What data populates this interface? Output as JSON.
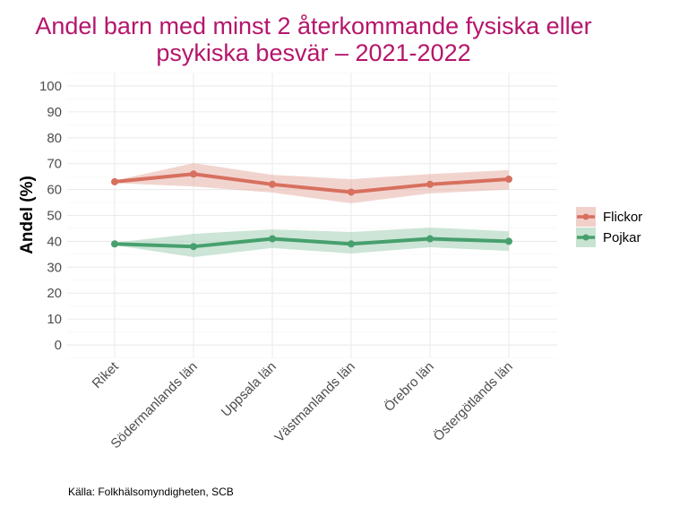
{
  "chart_data": {
    "type": "line",
    "title_lines": [
      "Andel barn med minst 2 återkommande fysiska eller",
      "psykiska besvär – 2021-2022"
    ],
    "xlabel": "",
    "ylabel": "Andel (%)",
    "ylim": [
      -5,
      105
    ],
    "yticks": [
      0,
      10,
      20,
      30,
      40,
      50,
      60,
      70,
      80,
      90,
      100
    ],
    "categories": [
      "Riket",
      "Södermanlands län",
      "Uppsala län",
      "Västmanlands län",
      "Örebro län",
      "Östergötlands län"
    ],
    "series": [
      {
        "name": "Flickor",
        "color": "#d7705f",
        "band_color": "#e7b0a7",
        "values": [
          63,
          66,
          62,
          59,
          62,
          64
        ],
        "lower": [
          62.5,
          61.2,
          58.8,
          54.7,
          58.5,
          60
        ],
        "upper": [
          63.5,
          70.2,
          65.7,
          64,
          66,
          67.5
        ]
      },
      {
        "name": "Pojkar",
        "color": "#47a06e",
        "band_color": "#a3d0b4",
        "values": [
          39,
          38,
          41,
          39,
          41,
          40
        ],
        "lower": [
          38.5,
          33.9,
          37.4,
          35.3,
          37.7,
          36.3
        ],
        "upper": [
          39.5,
          42.9,
          44.6,
          43.6,
          45.3,
          43.9
        ]
      }
    ],
    "grid": true,
    "legend_position": "right"
  },
  "caption": "Källa: Folkhälsomyndigheten, SCB"
}
